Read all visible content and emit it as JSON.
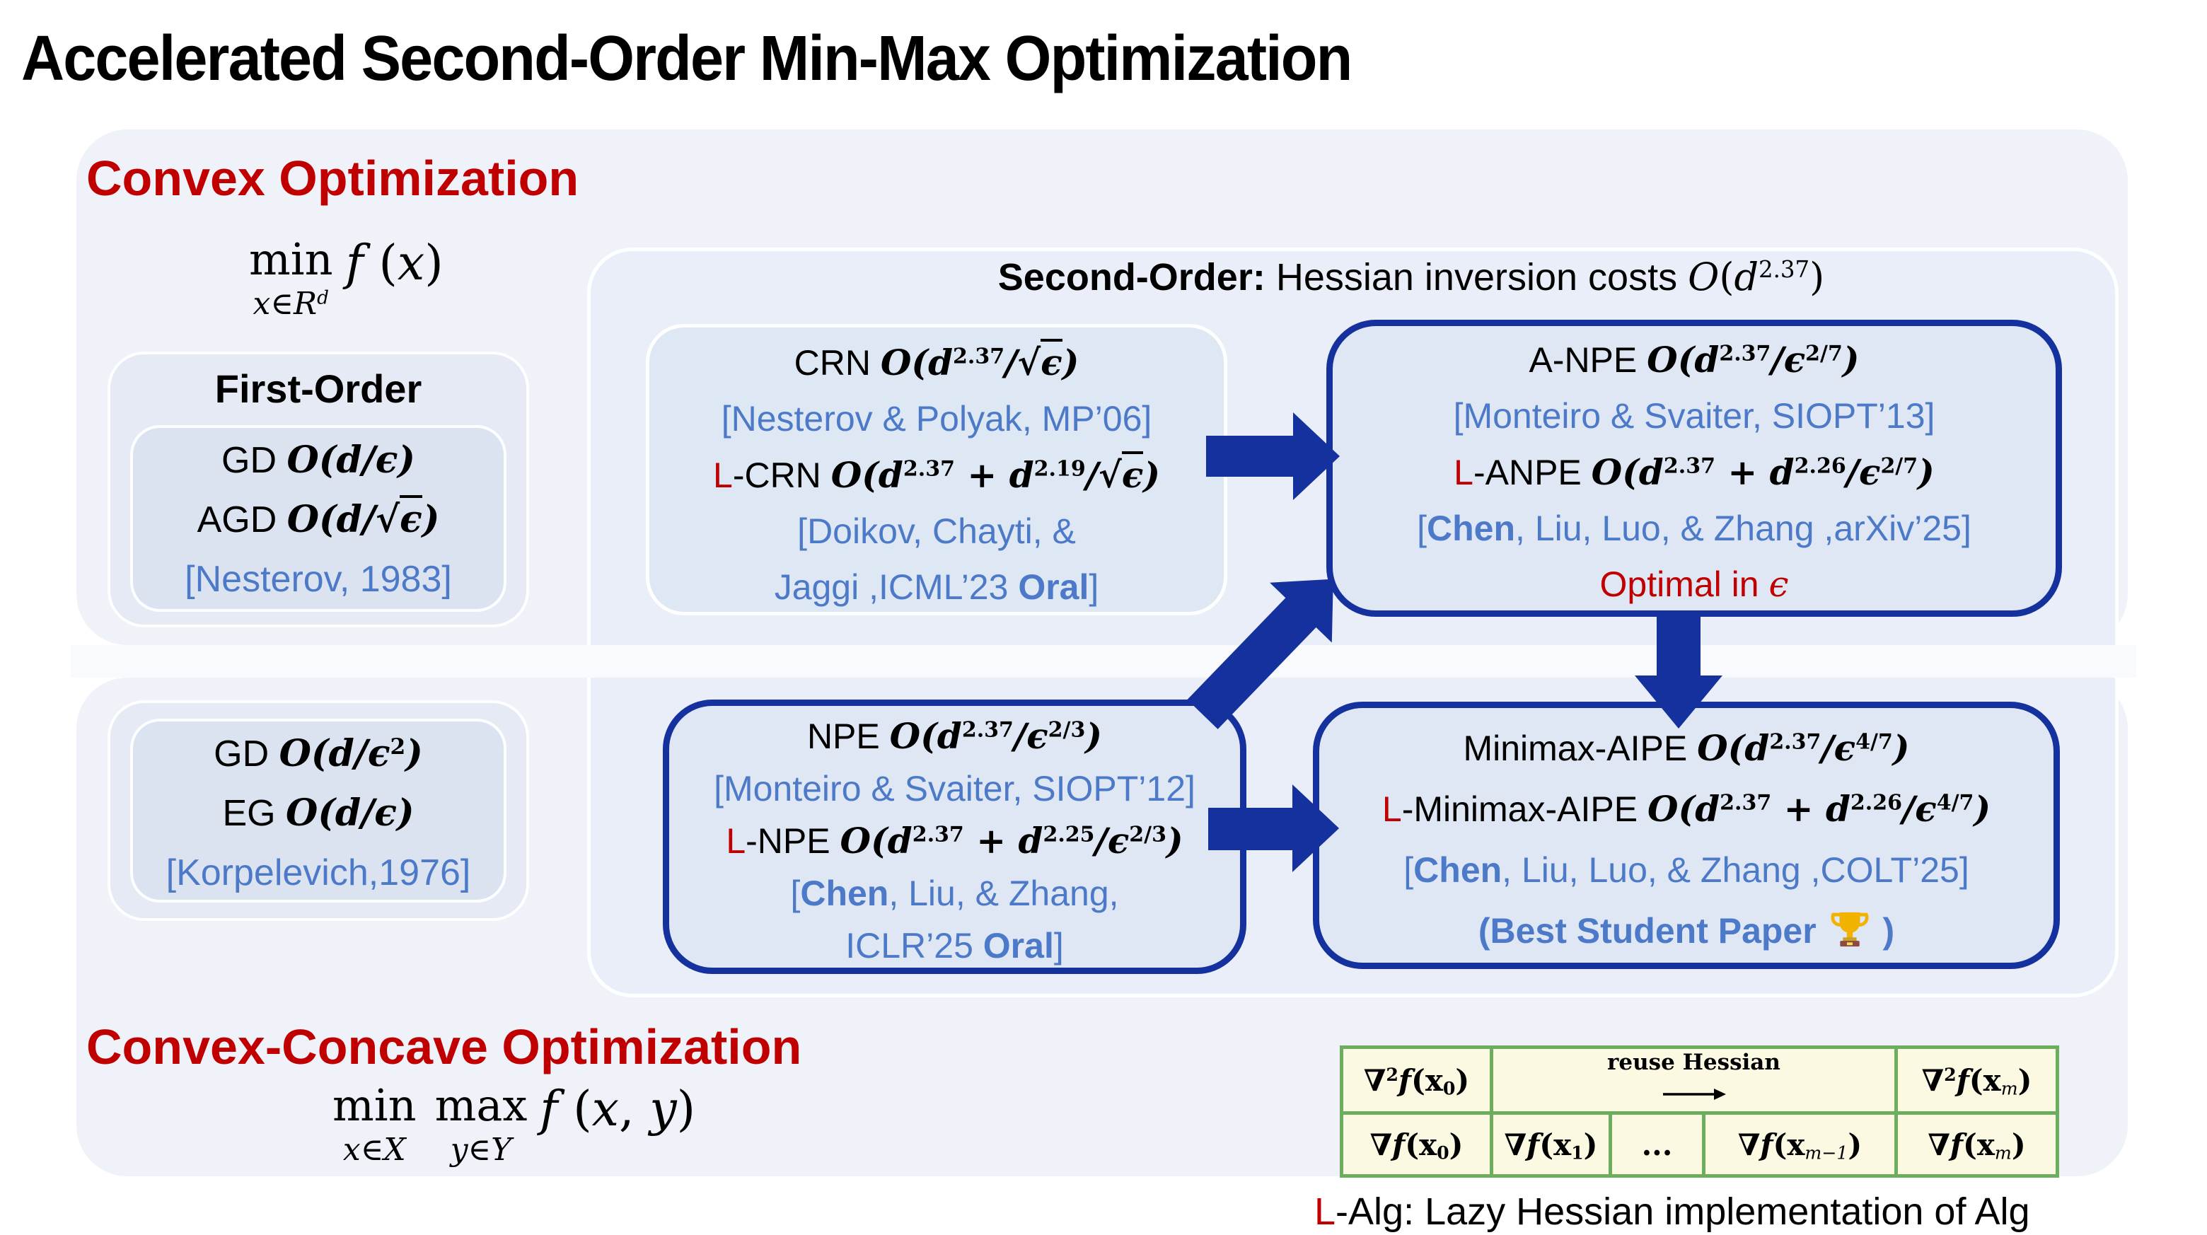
{
  "title": "Accelerated Second-Order Min-Max Optimization",
  "colors": {
    "accent_red": "#C00000",
    "citation_blue": "#4D7AC8",
    "navy": "#15319E",
    "panel_blue": "#EFF2F9",
    "table_green": "#6CAE5E",
    "table_fill": "#FBF9E2"
  },
  "convex": {
    "header": "Convex Optimization",
    "objective": {
      "op": "min",
      "under": [
        {
          "t": "x",
          "s": "mi"
        },
        {
          "t": "∈",
          "s": "mu"
        },
        {
          "t": "R",
          "s": "mi"
        },
        {
          "t": "d",
          "s": "mi sup"
        }
      ],
      "expr": [
        {
          "t": "f ",
          "s": "mi"
        },
        {
          "t": "(",
          "s": "mu"
        },
        {
          "t": "x",
          "s": "mi"
        },
        {
          "t": ")",
          "s": "mu"
        }
      ]
    },
    "first_order": {
      "label": "First-Order",
      "lines": [
        [
          {
            "t": "GD "
          },
          {
            "t": "O",
            "s": "m"
          },
          {
            "t": "(",
            "s": "m"
          },
          {
            "t": "d",
            "s": "m"
          },
          {
            "t": "/",
            "s": "m"
          },
          {
            "t": "ϵ",
            "s": "m"
          },
          {
            "t": ")",
            "s": "m"
          }
        ],
        [
          {
            "t": "AGD "
          },
          {
            "t": "O",
            "s": "m"
          },
          {
            "t": "(",
            "s": "m"
          },
          {
            "t": "d",
            "s": "m"
          },
          {
            "t": "/",
            "s": "m"
          },
          {
            "t": "√",
            "s": "m"
          },
          {
            "t": "ϵ",
            "s": "m rad"
          },
          {
            "t": ")",
            "s": "m"
          }
        ],
        [
          {
            "t": "[Nesterov, 1983]",
            "s": "u"
          }
        ]
      ]
    }
  },
  "concave": {
    "header": "Convex-Concave Optimization",
    "objective": {
      "op1": "min",
      "under1": [
        {
          "t": "x",
          "s": "mi"
        },
        {
          "t": "∈",
          "s": "mu"
        },
        {
          "t": "X",
          "s": "mi"
        }
      ],
      "op2": "max",
      "under2": [
        {
          "t": "y",
          "s": "mi"
        },
        {
          "t": "∈",
          "s": "mu"
        },
        {
          "t": "Y",
          "s": "mi"
        }
      ],
      "expr": [
        {
          "t": "f ",
          "s": "mi"
        },
        {
          "t": "(",
          "s": "mu"
        },
        {
          "t": "x",
          "s": "mi"
        },
        {
          "t": ",",
          "s": "mu"
        },
        {
          "t": " y",
          "s": "mi"
        },
        {
          "t": ")",
          "s": "mu"
        }
      ]
    },
    "first_order_lines": [
      [
        {
          "t": "GD "
        },
        {
          "t": "O",
          "s": "m"
        },
        {
          "t": "(",
          "s": "m"
        },
        {
          "t": "d",
          "s": "m"
        },
        {
          "t": "/",
          "s": "m"
        },
        {
          "t": "ϵ",
          "s": "m"
        },
        {
          "t": "2",
          "s": "mb sup"
        },
        {
          "t": ")",
          "s": "m"
        }
      ],
      [
        {
          "t": "EG "
        },
        {
          "t": "O",
          "s": "m"
        },
        {
          "t": "(",
          "s": "m"
        },
        {
          "t": "d",
          "s": "m"
        },
        {
          "t": "/",
          "s": "m"
        },
        {
          "t": "ϵ",
          "s": "m"
        },
        {
          "t": ")",
          "s": "m"
        }
      ],
      [
        {
          "t": "[Korpelevich,1976]",
          "s": "u"
        }
      ]
    ]
  },
  "second_order": {
    "header": [
      {
        "t": "Second-Order:",
        "s": "b"
      },
      {
        "t": "  Hessian inversion costs "
      },
      {
        "t": "O",
        "s": "mi"
      },
      {
        "t": "(",
        "s": "mu"
      },
      {
        "t": "d",
        "s": "mi"
      },
      {
        "t": "2.37",
        "s": "mu sup"
      },
      {
        "t": ")",
        "s": "mu"
      }
    ]
  },
  "boxes": {
    "crn": {
      "lines": [
        [
          {
            "t": "CRN  "
          },
          {
            "t": "O",
            "s": "m"
          },
          {
            "t": "(",
            "s": "m"
          },
          {
            "t": "d",
            "s": "m"
          },
          {
            "t": "2.37",
            "s": "mb sup"
          },
          {
            "t": "/",
            "s": "m"
          },
          {
            "t": "√",
            "s": "m"
          },
          {
            "t": "ϵ",
            "s": "m rad"
          },
          {
            "t": ")",
            "s": "m"
          }
        ],
        [
          {
            "t": "[Nesterov & Polyak, MP’06]",
            "s": "u"
          }
        ],
        [
          {
            "t": "L",
            "s": "r"
          },
          {
            "t": "-CRN "
          },
          {
            "t": "O",
            "s": "m"
          },
          {
            "t": "(",
            "s": "m"
          },
          {
            "t": "d",
            "s": "m"
          },
          {
            "t": "2.37",
            "s": "mb sup"
          },
          {
            "t": " + ",
            "s": "m"
          },
          {
            "t": "d",
            "s": "m"
          },
          {
            "t": "2.19",
            "s": "mb sup"
          },
          {
            "t": "/",
            "s": "m"
          },
          {
            "t": "√",
            "s": "m"
          },
          {
            "t": "ϵ",
            "s": "m rad"
          },
          {
            "t": ")",
            "s": "m"
          }
        ],
        [
          {
            "t": "[Doikov, Chayti, &",
            "s": "u"
          }
        ],
        [
          {
            "t": "Jaggi ,ICML’23 ",
            "s": "u"
          },
          {
            "t": "Oral",
            "s": "u b"
          },
          {
            "t": "]",
            "s": "u"
          }
        ]
      ]
    },
    "anpe": {
      "lines": [
        [
          {
            "t": "A-NPE "
          },
          {
            "t": "O",
            "s": "m"
          },
          {
            "t": "(",
            "s": "m"
          },
          {
            "t": "d",
            "s": "m"
          },
          {
            "t": "2.37",
            "s": "mb sup"
          },
          {
            "t": "/",
            "s": "m"
          },
          {
            "t": "ϵ",
            "s": "m"
          },
          {
            "t": "2/7",
            "s": "mb sup"
          },
          {
            "t": ")",
            "s": "m"
          }
        ],
        [
          {
            "t": "[Monteiro & Svaiter, SIOPT’13]",
            "s": "u"
          }
        ],
        [
          {
            "t": "L",
            "s": "r"
          },
          {
            "t": "-ANPE "
          },
          {
            "t": "O",
            "s": "m"
          },
          {
            "t": "(",
            "s": "m"
          },
          {
            "t": "d",
            "s": "m"
          },
          {
            "t": "2.37",
            "s": "mb sup"
          },
          {
            "t": " + ",
            "s": "m"
          },
          {
            "t": "d",
            "s": "m"
          },
          {
            "t": "2.26",
            "s": "mb sup"
          },
          {
            "t": "/",
            "s": "m"
          },
          {
            "t": "ϵ",
            "s": "m"
          },
          {
            "t": "2/7",
            "s": "mb sup"
          },
          {
            "t": ")",
            "s": "m"
          }
        ],
        [
          {
            "t": "[",
            "s": "u"
          },
          {
            "t": "Chen",
            "s": "u b"
          },
          {
            "t": ", Liu, Luo, & Zhang ,arXiv’25]",
            "s": "u"
          }
        ],
        [
          {
            "t": "Optimal in ",
            "s": "r"
          },
          {
            "t": "ϵ",
            "s": "r mi"
          }
        ]
      ]
    },
    "npe": {
      "lines": [
        [
          {
            "t": "NPE "
          },
          {
            "t": "O",
            "s": "m"
          },
          {
            "t": "(",
            "s": "m"
          },
          {
            "t": "d",
            "s": "m"
          },
          {
            "t": "2.37",
            "s": "mb sup"
          },
          {
            "t": "/",
            "s": "m"
          },
          {
            "t": "ϵ",
            "s": "m"
          },
          {
            "t": "2/3",
            "s": "mb sup"
          },
          {
            "t": ")",
            "s": "m"
          }
        ],
        [
          {
            "t": "[Monteiro & Svaiter, SIOPT’12]",
            "s": "u"
          }
        ],
        [
          {
            "t": "L",
            "s": "r"
          },
          {
            "t": "-NPE "
          },
          {
            "t": "O",
            "s": "m"
          },
          {
            "t": "(",
            "s": "m"
          },
          {
            "t": "d",
            "s": "m"
          },
          {
            "t": "2.37",
            "s": "mb sup"
          },
          {
            "t": " + ",
            "s": "m"
          },
          {
            "t": "d",
            "s": "m"
          },
          {
            "t": "2.25",
            "s": "mb sup"
          },
          {
            "t": "/",
            "s": "m"
          },
          {
            "t": "ϵ",
            "s": "m"
          },
          {
            "t": "2/3",
            "s": "mb sup"
          },
          {
            "t": ")",
            "s": "m"
          }
        ],
        [
          {
            "t": "[",
            "s": "u"
          },
          {
            "t": "Chen",
            "s": "u b"
          },
          {
            "t": ", Liu, & Zhang,",
            "s": "u"
          }
        ],
        [
          {
            "t": "ICLR’25 ",
            "s": "u"
          },
          {
            "t": "Oral",
            "s": "u b"
          },
          {
            "t": "]",
            "s": "u"
          }
        ]
      ]
    },
    "minimax": {
      "lines": [
        [
          {
            "t": "Minimax-AIPE "
          },
          {
            "t": "O",
            "s": "m"
          },
          {
            "t": "(",
            "s": "m"
          },
          {
            "t": "d",
            "s": "m"
          },
          {
            "t": "2.37",
            "s": "mb sup"
          },
          {
            "t": "/",
            "s": "m"
          },
          {
            "t": "ϵ",
            "s": "m"
          },
          {
            "t": "4/7",
            "s": "mb sup"
          },
          {
            "t": ")",
            "s": "m"
          }
        ],
        [
          {
            "t": "L",
            "s": "r"
          },
          {
            "t": "-Minimax-AIPE "
          },
          {
            "t": "O",
            "s": "m"
          },
          {
            "t": "(",
            "s": "m"
          },
          {
            "t": "d",
            "s": "m"
          },
          {
            "t": "2.37",
            "s": "mb sup"
          },
          {
            "t": " + ",
            "s": "m"
          },
          {
            "t": "d",
            "s": "m"
          },
          {
            "t": "2.26",
            "s": "mb sup"
          },
          {
            "t": "/",
            "s": "m"
          },
          {
            "t": "ϵ",
            "s": "m"
          },
          {
            "t": "4/7",
            "s": "mb sup"
          },
          {
            "t": ")",
            "s": "m"
          }
        ],
        [
          {
            "t": "[",
            "s": "u"
          },
          {
            "t": "Chen",
            "s": "u b"
          },
          {
            "t": ", Liu, Luo, & Zhang ,COLT’25]",
            "s": "u"
          }
        ],
        [
          {
            "t": "(Best Student Paper ",
            "s": "u b"
          },
          {
            "icon": "trophy"
          },
          {
            "t": " )",
            "s": "u b"
          }
        ]
      ]
    }
  },
  "table": {
    "reuse_label": "reuse Hessian",
    "row1_left": [
      {
        "t": "∇",
        "s": "mb"
      },
      {
        "t": "2",
        "s": "mb sup"
      },
      {
        "t": "f",
        "s": "m"
      },
      {
        "t": "(",
        "s": "mu b"
      },
      {
        "t": "x",
        "s": "mu b"
      },
      {
        "t": "0",
        "s": "mb sub"
      },
      {
        "t": ")",
        "s": "mu b"
      }
    ],
    "row1_right": [
      {
        "t": "∇",
        "s": "mb"
      },
      {
        "t": "2",
        "s": "mb sup"
      },
      {
        "t": "f",
        "s": "m"
      },
      {
        "t": "(",
        "s": "mu b"
      },
      {
        "t": "x",
        "s": "mu b"
      },
      {
        "t": "m",
        "s": "mi sub"
      },
      {
        "t": ")",
        "s": "mu b"
      }
    ],
    "row2": [
      [
        {
          "t": "∇",
          "s": "mb"
        },
        {
          "t": "f",
          "s": "m"
        },
        {
          "t": "(",
          "s": "mu b"
        },
        {
          "t": "x",
          "s": "mu b"
        },
        {
          "t": "0",
          "s": "mb sub"
        },
        {
          "t": ")",
          "s": "mu b"
        }
      ],
      [
        {
          "t": "∇",
          "s": "mb"
        },
        {
          "t": "f",
          "s": "m"
        },
        {
          "t": "(",
          "s": "mu b"
        },
        {
          "t": "x",
          "s": "mu b"
        },
        {
          "t": "1",
          "s": "mb sub"
        },
        {
          "t": ")",
          "s": "mu b"
        }
      ],
      [
        {
          "t": "...",
          "s": "mb"
        }
      ],
      [
        {
          "t": "∇",
          "s": "mb"
        },
        {
          "t": "f",
          "s": "m"
        },
        {
          "t": "(",
          "s": "mu b"
        },
        {
          "t": "x",
          "s": "mu b"
        },
        {
          "t": "m−1",
          "s": "mi sub"
        },
        {
          "t": ")",
          "s": "mu b"
        }
      ],
      [
        {
          "t": "∇",
          "s": "mb"
        },
        {
          "t": "f",
          "s": "m"
        },
        {
          "t": "(",
          "s": "mu b"
        },
        {
          "t": "x",
          "s": "mu b"
        },
        {
          "t": "m",
          "s": "mi sub"
        },
        {
          "t": ")",
          "s": "mu b"
        }
      ]
    ]
  },
  "caption": [
    {
      "t": "L",
      "s": "r"
    },
    {
      "t": "-Alg: Lazy Hessian implementation of Alg"
    }
  ]
}
